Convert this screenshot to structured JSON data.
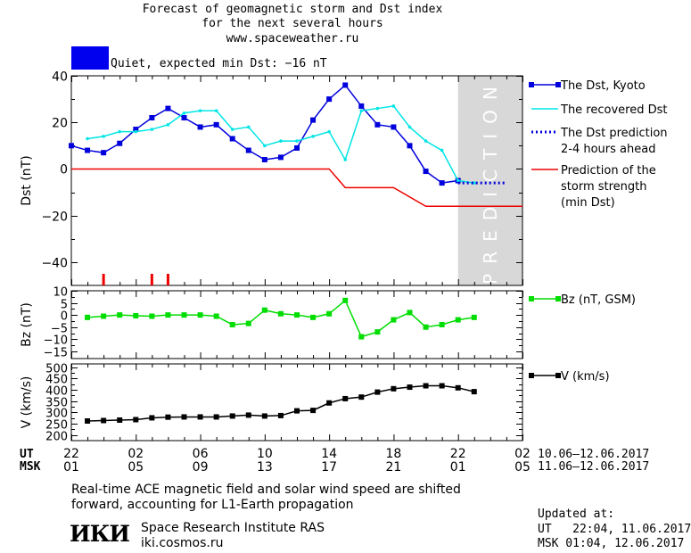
{
  "header": {
    "title_line1": "Forecast of geomagnetic storm and Dst index",
    "title_line2": "for the next several hours",
    "site": "www.spaceweather.ru",
    "status_text": "Quiet, expected min Dst: −16 nT",
    "status_color": "#0000ee"
  },
  "chart_data": [
    {
      "type": "line",
      "id": "dst",
      "ylabel": "Dst (nT)",
      "ylim": [
        -50,
        40
      ],
      "yticks": [
        40,
        20,
        0,
        -20,
        -40
      ],
      "x_unit": "hours from 22 UT, 10.06.2017",
      "xlim": [
        0,
        28
      ],
      "prediction_band": {
        "from": 24,
        "to": 28,
        "label": "PREDICTION"
      },
      "series": [
        {
          "name": "The Dst, Kyoto",
          "color": "#0000dd",
          "marker": "square",
          "x": [
            0,
            1,
            2,
            3,
            4,
            5,
            6,
            7,
            8,
            9,
            10,
            11,
            12,
            13,
            14,
            15,
            16,
            17,
            18,
            19,
            20,
            21,
            22,
            23,
            24
          ],
          "y": [
            10,
            8,
            7,
            11,
            17,
            22,
            26,
            22,
            18,
            19,
            13,
            8,
            4,
            5,
            9,
            21,
            30,
            36,
            27,
            19,
            18,
            10,
            -1,
            -6,
            -5
          ]
        },
        {
          "name": "The recovered Dst",
          "color": "#00e5e5",
          "marker": "dot",
          "x": [
            1,
            2,
            3,
            4,
            5,
            6,
            7,
            8,
            9,
            10,
            11,
            12,
            13,
            14,
            15,
            16,
            17,
            18,
            19,
            20,
            21,
            22,
            23,
            24,
            25
          ],
          "y": [
            13,
            14,
            16,
            16,
            17,
            19,
            24,
            25,
            25,
            17,
            18,
            10,
            12,
            12,
            14,
            16,
            4,
            25,
            26,
            27,
            18,
            12,
            8,
            -5,
            -6
          ]
        },
        {
          "name": "The Dst prediction\n2-4 hours ahead",
          "color": "#0000dd",
          "style": "dotted",
          "x": [
            24,
            25,
            26,
            27
          ],
          "y": [
            -6,
            -6,
            -6,
            -6
          ]
        },
        {
          "name": "Prediction of the\nstorm strength\n(min Dst)",
          "color": "#ee0000",
          "style": "step",
          "x": [
            0,
            16,
            17,
            20,
            22,
            28
          ],
          "y": [
            0,
            0,
            -8,
            -8,
            -16,
            -16
          ]
        }
      ],
      "markers_x": [
        2,
        5,
        6
      ],
      "markers_color": "#ee0000"
    },
    {
      "type": "line",
      "id": "bz",
      "ylabel": "Bz (nT)",
      "ylim": [
        -18,
        10
      ],
      "yticks": [
        10,
        5,
        0,
        -5,
        -10,
        -15
      ],
      "xlim": [
        0,
        28
      ],
      "series": [
        {
          "name": "Bz (nT, GSM)",
          "color": "#00dd00",
          "marker": "square",
          "x": [
            1,
            2,
            3,
            4,
            5,
            6,
            7,
            8,
            9,
            10,
            11,
            12,
            13,
            14,
            15,
            16,
            17,
            18,
            19,
            20,
            21,
            22,
            23,
            24,
            25
          ],
          "y": [
            -1,
            -0.5,
            0,
            -0.3,
            -0.5,
            0,
            0,
            0,
            -0.5,
            -4,
            -3.5,
            2,
            0.5,
            0,
            -1,
            0.5,
            6,
            -9,
            -7,
            -2,
            1,
            -5,
            -4,
            -2,
            -1
          ]
        }
      ]
    },
    {
      "type": "line",
      "id": "v",
      "ylabel": "V (km/s)",
      "ylim": [
        175,
        515
      ],
      "yticks": [
        500,
        450,
        400,
        350,
        300,
        250,
        200
      ],
      "xlim": [
        0,
        28
      ],
      "series": [
        {
          "name": "V (km/s)",
          "color": "#000000",
          "marker": "square",
          "x": [
            1,
            2,
            3,
            4,
            5,
            6,
            7,
            8,
            9,
            10,
            11,
            12,
            13,
            14,
            15,
            16,
            17,
            18,
            19,
            20,
            21,
            22,
            23,
            24,
            25
          ],
          "y": [
            262,
            264,
            266,
            268,
            276,
            279,
            280,
            280,
            280,
            284,
            288,
            284,
            286,
            307,
            309,
            342,
            361,
            368,
            390,
            405,
            412,
            418,
            418,
            409,
            392
          ]
        }
      ]
    }
  ],
  "x_axis": {
    "ut_label": "UT",
    "msk_label": "MSK",
    "ut_ticks": [
      "22",
      "02",
      "06",
      "10",
      "14",
      "18",
      "22",
      "02"
    ],
    "msk_ticks": [
      "01",
      "05",
      "09",
      "13",
      "17",
      "21",
      "01",
      "05"
    ],
    "ut_range": "10.06–12.06.2017",
    "msk_range": "11.06–12.06.2017"
  },
  "footer": {
    "note_line1": "Real-time ACE magnetic field and solar wind speed are shifted",
    "note_line2": "forward, accounting for L1-Earth propagation",
    "logo_text": "ИКИ",
    "institute": "Space Research Institute RAS",
    "institute_url": "iki.cosmos.ru",
    "updated_label": "Updated at:",
    "updated_ut": "UT   22:04, 11.06.2017",
    "updated_msk": "MSK 01:04, 12.06.2017"
  }
}
